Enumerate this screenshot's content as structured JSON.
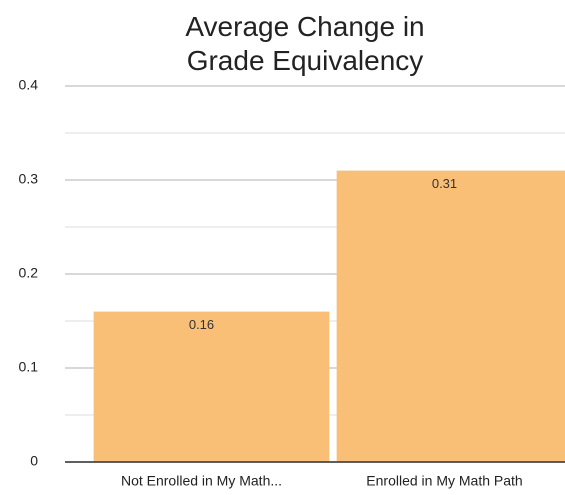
{
  "chart_data": {
    "type": "bar",
    "title": "Average Change in Grade Equivalency",
    "categories": [
      "Not Enrolled in My Math...",
      "Enrolled in My Math Path"
    ],
    "values": [
      0.16,
      0.31
    ],
    "color": "#f9bf76",
    "ylim": [
      0,
      0.4
    ],
    "yticks": [
      0,
      0.1,
      0.2,
      0.3,
      0.4
    ],
    "minor_yticks": [
      0.05,
      0.15,
      0.25,
      0.35
    ],
    "grid": true,
    "data_labels": true
  }
}
